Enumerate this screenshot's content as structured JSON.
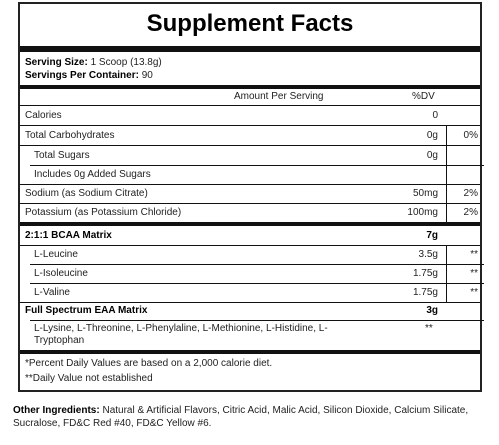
{
  "title": "Supplement Facts",
  "serving_size": {
    "label": "Serving Size:",
    "value": "1 Scoop (13.8g)"
  },
  "servings_per_container": {
    "label": "Servings Per Container:",
    "value": "90"
  },
  "header": {
    "amount_per_serving": "Amount Per Serving",
    "dv": "%DV"
  },
  "rows": [
    {
      "name": "Calories",
      "amount": "0",
      "dv": ""
    },
    {
      "name": "Total Carbohydrates",
      "amount": "0g",
      "dv": "0%"
    },
    {
      "name": "Total Sugars",
      "amount": "0g",
      "dv": ""
    },
    {
      "name": "Includes 0g Added Sugars",
      "amount": "",
      "dv": ""
    },
    {
      "name": "Sodium (as Sodium Citrate)",
      "amount": "50mg",
      "dv": "2%"
    },
    {
      "name": "Potassium (as Potassium Chloride)",
      "amount": "100mg",
      "dv": "2%"
    }
  ],
  "bcaa": {
    "name": "2:1:1 BCAA Matrix",
    "amount": "7g",
    "items": [
      {
        "name": "L-Leucine",
        "amount": "3.5g",
        "dv": "**"
      },
      {
        "name": "L-Isoleucine",
        "amount": "1.75g",
        "dv": "**"
      },
      {
        "name": "L-Valine",
        "amount": "1.75g",
        "dv": "**"
      }
    ]
  },
  "eaa": {
    "name": "Full Spectrum EAA Matrix",
    "amount": "3g",
    "items_line1": "L-Lysine, L-Threonine, L-Phenylaline, L-Methionine, L-Histidine, L-",
    "items_line2": "Tryptophan",
    "dv": "**"
  },
  "footnotes": [
    "*Percent Daily Values are based on a 2,000 calorie diet.",
    "**Daily Value not established"
  ],
  "other_ingredients": {
    "label": "Other Ingredients:",
    "text": "Natural & Artificial Flavors, Citric Acid, Malic Acid, Silicon Dioxide, Calcium Silicate, Sucralose, FD&C Red #40, FD&C Yellow #6."
  }
}
